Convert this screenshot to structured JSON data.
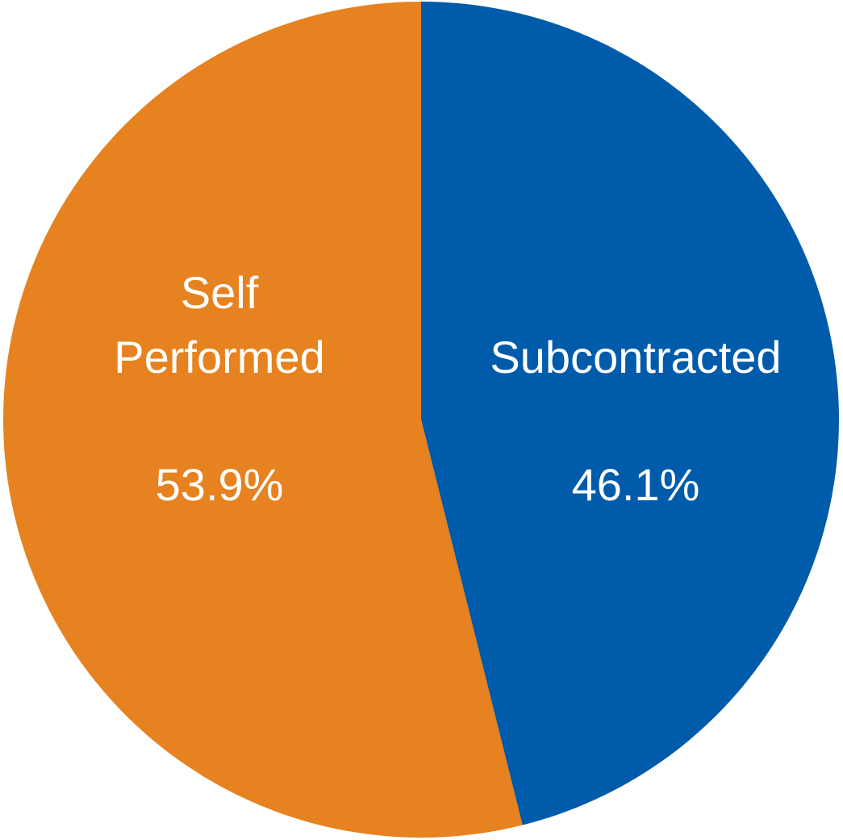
{
  "chart_data": {
    "type": "pie",
    "title": "",
    "slices": [
      {
        "label": [
          "Subcontracted"
        ],
        "value": 46.1,
        "value_label": "46.1%",
        "color": "#005BAA"
      },
      {
        "label": [
          "Self",
          "Performed"
        ],
        "value": 53.9,
        "value_label": "53.9%",
        "color": "#E6821F"
      }
    ],
    "start_angle": "12 o'clock",
    "direction": "clockwise",
    "legend": "none"
  }
}
